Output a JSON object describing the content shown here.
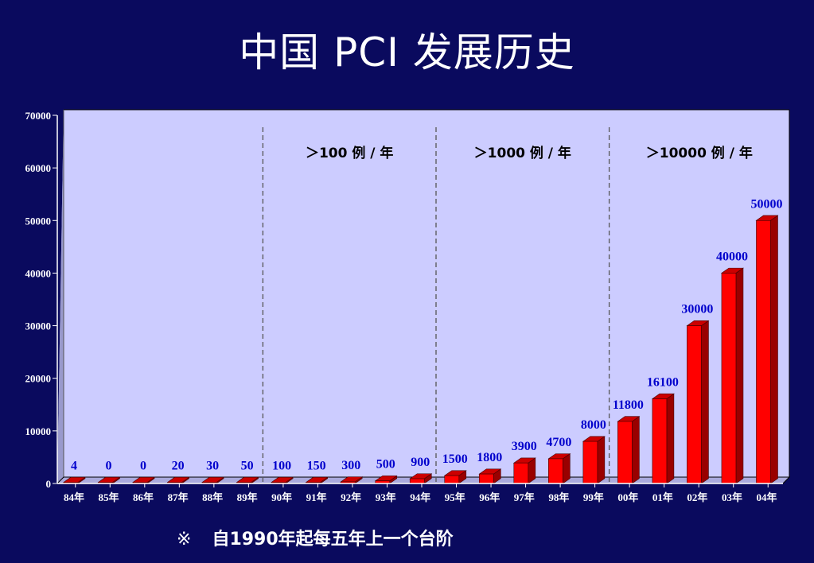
{
  "title": "中国 PCI 发展历史",
  "footnote": {
    "mark": "※",
    "text": "自1990年起每五年上一个台阶"
  },
  "colors": {
    "background": "#0a0a5e",
    "plot_area": "#ccccff",
    "bar_front": "#ff0000",
    "bar_side": "#990000",
    "bar_top": "#cc0000",
    "value_label": "#0000cc",
    "axis_text": "#ffffff"
  },
  "chart_data": {
    "type": "bar",
    "title": "",
    "xlabel": "",
    "ylabel": "",
    "categories": [
      "84年",
      "85年",
      "86年",
      "87年",
      "88年",
      "89年",
      "90年",
      "91年",
      "92年",
      "93年",
      "94年",
      "95年",
      "96年",
      "97年",
      "98年",
      "99年",
      "00年",
      "01年",
      "02年",
      "03年",
      "04年"
    ],
    "values": [
      4,
      0,
      0,
      20,
      30,
      50,
      100,
      150,
      300,
      500,
      900,
      1500,
      1800,
      3900,
      4700,
      8000,
      11800,
      16100,
      30000,
      40000,
      50000
    ],
    "data_labels": [
      "4",
      "0",
      "0",
      "20",
      "30",
      "50",
      "100",
      "150",
      "300",
      "500",
      "900",
      "1500",
      "1800",
      "3900",
      "4700",
      "8000",
      "11800",
      "16100",
      "30000",
      "40000",
      "50000"
    ],
    "ylim": [
      0,
      70000
    ],
    "yticks": [
      "0",
      "10000",
      "20000",
      "30000",
      "40000",
      "50000",
      "60000",
      "70000"
    ],
    "yticks_values": [
      0,
      10000,
      20000,
      30000,
      40000,
      50000,
      60000,
      70000
    ],
    "grid": false,
    "bar_style": "3d",
    "dividers": [
      {
        "after_category": "89年",
        "label": "＞100 例 / 年"
      },
      {
        "after_category": "94年",
        "label": "＞1000 例 / 年"
      },
      {
        "after_category": "99年",
        "label": "＞10000 例 / 年"
      }
    ]
  }
}
